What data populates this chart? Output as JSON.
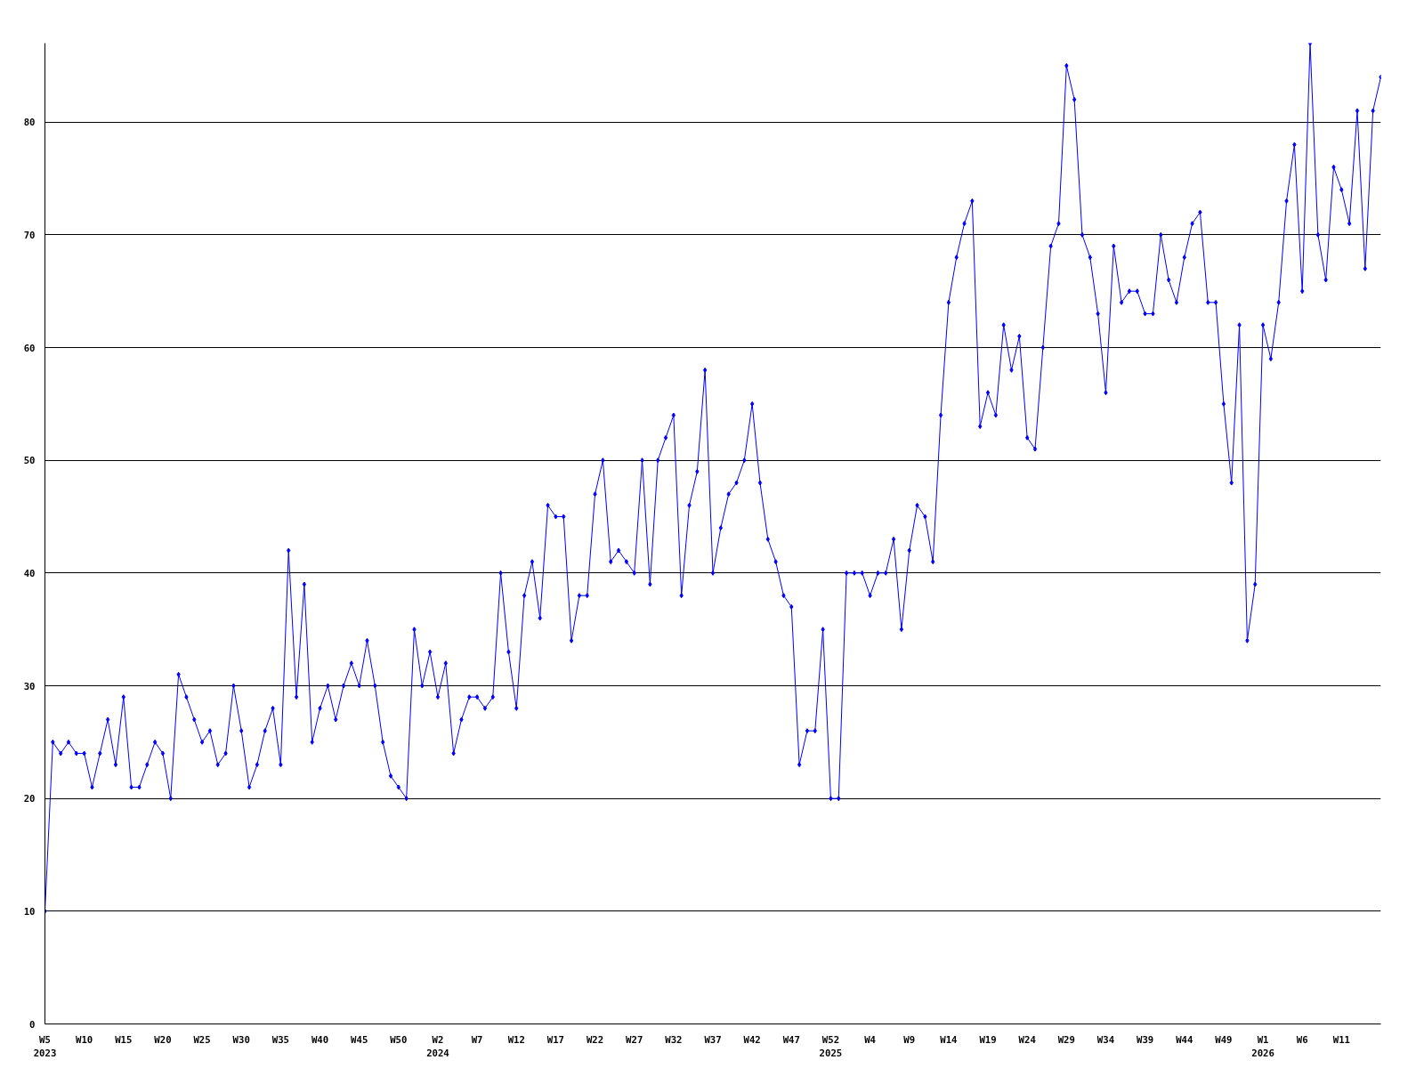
{
  "chart_data": {
    "type": "line",
    "categories": [
      "W5\n2023",
      null,
      null,
      null,
      null,
      "W10",
      null,
      null,
      null,
      null,
      "W15",
      null,
      null,
      null,
      null,
      "W20",
      null,
      null,
      null,
      null,
      "W25",
      null,
      null,
      null,
      null,
      "W30",
      null,
      null,
      null,
      null,
      "W35",
      null,
      null,
      null,
      null,
      "W40",
      null,
      null,
      null,
      null,
      "W45",
      null,
      null,
      null,
      null,
      "W50",
      null,
      null,
      null,
      null,
      "W2\n2024",
      null,
      null,
      null,
      null,
      "W7",
      null,
      null,
      null,
      null,
      "W12",
      null,
      null,
      null,
      null,
      "W17",
      null,
      null,
      null,
      null,
      "W22",
      null,
      null,
      null,
      null,
      "W27",
      null,
      null,
      null,
      null,
      "W32",
      null,
      null,
      null,
      null,
      "W37",
      null,
      null,
      null,
      null,
      "W42",
      null,
      null,
      null,
      null,
      "W47",
      null,
      null,
      null,
      null,
      "W52\n2025",
      null,
      null,
      null,
      null,
      "W4",
      null,
      null,
      null,
      null,
      "W9",
      null,
      null,
      null,
      null,
      "W14",
      null,
      null,
      null,
      null,
      "W19",
      null,
      null,
      null,
      null,
      "W24",
      null,
      null,
      null,
      null,
      "W29",
      null,
      null,
      null,
      null,
      "W34",
      null,
      null,
      null,
      null,
      "W39",
      null,
      null,
      null,
      null,
      "W44",
      null,
      null,
      null,
      null,
      "W49",
      null,
      null,
      null,
      null,
      "W1\n2026",
      null,
      null,
      null,
      null,
      "W6",
      null,
      null,
      null,
      null,
      "W11",
      null,
      null,
      null,
      null,
      null
    ],
    "series": [
      {
        "color": "#0000ff",
        "values": [
          10,
          25,
          24,
          25,
          24,
          24,
          21,
          24,
          27,
          23,
          29,
          21,
          21,
          23,
          25,
          24,
          20,
          31,
          29,
          27,
          25,
          26,
          23,
          24,
          30,
          26,
          21,
          23,
          26,
          28,
          23,
          42,
          29,
          39,
          25,
          28,
          30,
          27,
          30,
          32,
          30,
          34,
          30,
          25,
          22,
          21,
          20,
          35,
          30,
          33,
          29,
          32,
          24,
          27,
          29,
          29,
          28,
          29,
          40,
          33,
          28,
          38,
          41,
          36,
          46,
          45,
          45,
          34,
          38,
          38,
          47,
          50,
          41,
          42,
          41,
          40,
          50,
          39,
          50,
          52,
          54,
          38,
          46,
          49,
          58,
          40,
          44,
          47,
          48,
          50,
          55,
          48,
          43,
          41,
          38,
          37,
          23,
          26,
          26,
          35,
          20,
          20,
          40,
          40,
          40,
          38,
          40,
          40,
          43,
          35,
          42,
          46,
          45,
          41,
          54,
          64,
          68,
          71,
          73,
          53,
          56,
          54,
          62,
          58,
          61,
          52,
          51,
          60,
          69,
          71,
          85,
          82,
          70,
          68,
          63,
          56,
          69,
          64,
          65,
          65,
          63,
          63,
          70,
          66,
          64,
          68,
          71,
          72,
          64,
          64,
          55,
          48,
          62,
          34,
          39,
          62,
          59,
          64,
          73,
          78,
          65,
          87,
          70,
          66,
          76,
          74,
          71,
          81,
          67,
          81,
          84
        ]
      }
    ],
    "ylim": [
      0,
      87
    ],
    "yticks": [
      0,
      10,
      20,
      30,
      40,
      50,
      60,
      70,
      80
    ],
    "grid": "y",
    "marker": "diamond",
    "line_style": "solid"
  }
}
